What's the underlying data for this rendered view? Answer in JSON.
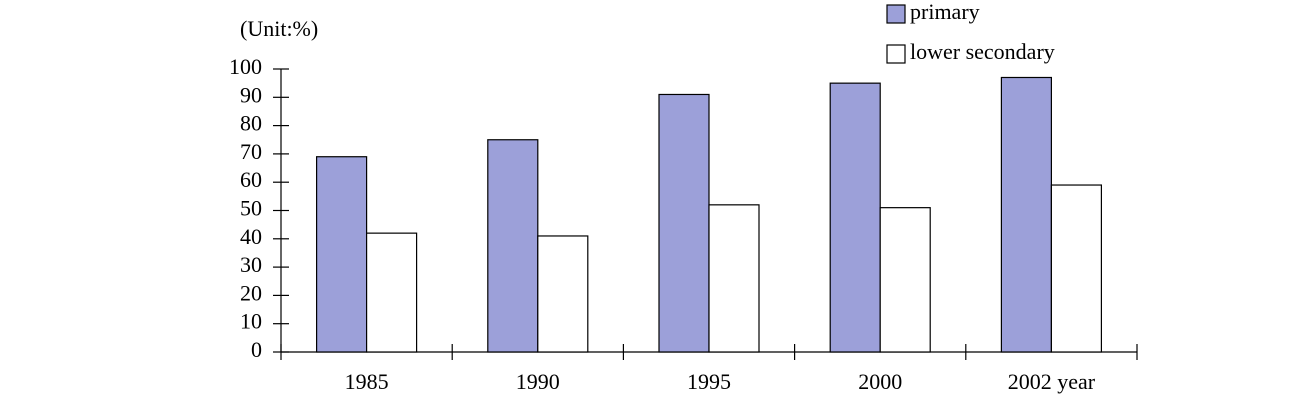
{
  "chart_data": {
    "type": "bar",
    "y_label": "(Unit:%)",
    "categories": [
      "1985",
      "1990",
      "1995",
      "2000",
      "2002 year"
    ],
    "series": [
      {
        "name": "primary",
        "color": "#9ca0d9",
        "values": [
          69,
          75,
          91,
          95,
          97
        ]
      },
      {
        "name": "lower secondary",
        "color": "#ffffff",
        "values": [
          42,
          41,
          52,
          51,
          59
        ]
      }
    ],
    "ylim": [
      0,
      100
    ],
    "yticks": [
      0,
      10,
      20,
      30,
      40,
      50,
      60,
      70,
      80,
      90,
      100
    ],
    "grid": false,
    "legend": "upper right"
  }
}
